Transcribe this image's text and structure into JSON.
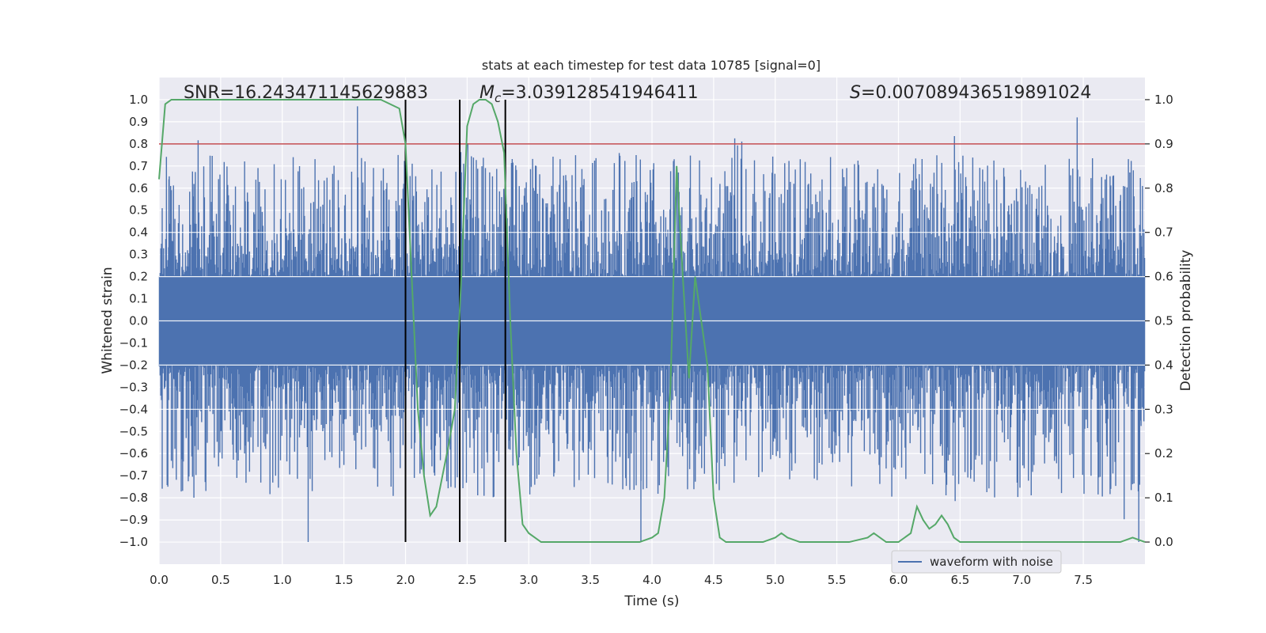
{
  "chart_data": {
    "type": "line",
    "title": "stats at each timestep for test data 10785 [signal=0]",
    "xlabel": "Time (s)",
    "ylabel": "Whitened strain",
    "y2label": "Detection probability",
    "xlim": [
      0,
      8
    ],
    "ylim": [
      -1.1,
      1.1
    ],
    "y2lim": [
      -0.05,
      1.05
    ],
    "xticks": [
      "0.0",
      "0.5",
      "1.0",
      "1.5",
      "2.0",
      "2.5",
      "3.0",
      "3.5",
      "4.0",
      "4.5",
      "5.0",
      "5.5",
      "6.0",
      "6.5",
      "7.0",
      "7.5"
    ],
    "yticks": [
      "1.0",
      "0.9",
      "0.8",
      "0.7",
      "0.6",
      "0.5",
      "0.4",
      "0.3",
      "0.2",
      "0.1",
      "0.0",
      "-0.1",
      "-0.2",
      "-0.3",
      "-0.4",
      "-0.5",
      "-0.6",
      "-0.7",
      "-0.8",
      "-0.9",
      "-1.0"
    ],
    "y2ticks": [
      "1.0",
      "0.9",
      "0.8",
      "0.7",
      "0.6",
      "0.5",
      "0.4",
      "0.3",
      "0.2",
      "0.1",
      "0.0"
    ],
    "grid": true,
    "annotations": {
      "snr": "SNR=16.243471145629883",
      "mc_symbol": "M",
      "mc_sub": "c",
      "mc_value": "=3.039128541946411",
      "s_symbol": "S",
      "s_value": "=0.007089436519891024"
    },
    "legend": {
      "label": "waveform with noise",
      "position": "lower-right"
    },
    "threshold_y2": 0.9,
    "vlines_x": [
      2.0,
      2.44,
      2.81
    ],
    "series": [
      {
        "name": "waveform with noise",
        "color": "#4c72b0",
        "axis": "left",
        "description": "whitened noisy strain sampled across 0-8 s, core band about ±0.2 with spikes up to ±1.0",
        "spikes": [
          {
            "x": 1.21,
            "y": -1.0
          },
          {
            "x": 1.61,
            "y": 0.97
          },
          {
            "x": 3.91,
            "y": -1.0
          },
          {
            "x": 7.45,
            "y": 0.92
          },
          {
            "x": 7.95,
            "y": -1.0
          },
          {
            "x": 0.08,
            "y": 0.64
          },
          {
            "x": 7.98,
            "y": 0.61
          }
        ]
      },
      {
        "name": "detection probability",
        "color": "#55a868",
        "axis": "right",
        "x": [
          0.0,
          0.05,
          0.1,
          0.2,
          0.5,
          1.0,
          1.5,
          1.8,
          1.95,
          2.0,
          2.05,
          2.1,
          2.15,
          2.2,
          2.25,
          2.3,
          2.35,
          2.4,
          2.45,
          2.5,
          2.55,
          2.6,
          2.65,
          2.7,
          2.75,
          2.8,
          2.85,
          2.9,
          2.95,
          3.0,
          3.05,
          3.1,
          3.2,
          3.5,
          3.9,
          4.0,
          4.05,
          4.1,
          4.15,
          4.2,
          4.25,
          4.3,
          4.35,
          4.4,
          4.45,
          4.5,
          4.55,
          4.6,
          4.8,
          4.9,
          5.0,
          5.05,
          5.1,
          5.2,
          5.4,
          5.6,
          5.75,
          5.8,
          5.85,
          5.9,
          6.0,
          6.1,
          6.15,
          6.2,
          6.25,
          6.3,
          6.35,
          6.4,
          6.45,
          6.5,
          6.6,
          7.0,
          7.5,
          7.8,
          7.9,
          8.0
        ],
        "y": [
          0.82,
          0.99,
          1.0,
          1.0,
          1.0,
          1.0,
          1.0,
          1.0,
          0.98,
          0.9,
          0.6,
          0.3,
          0.15,
          0.06,
          0.08,
          0.15,
          0.22,
          0.3,
          0.58,
          0.94,
          0.99,
          1.0,
          1.0,
          0.99,
          0.95,
          0.88,
          0.5,
          0.2,
          0.04,
          0.02,
          0.01,
          0.0,
          0.0,
          0.0,
          0.0,
          0.01,
          0.02,
          0.1,
          0.35,
          0.85,
          0.6,
          0.37,
          0.6,
          0.5,
          0.4,
          0.1,
          0.01,
          0.0,
          0.0,
          0.0,
          0.01,
          0.02,
          0.01,
          0.0,
          0.0,
          0.0,
          0.01,
          0.02,
          0.01,
          0.0,
          0.0,
          0.02,
          0.08,
          0.05,
          0.03,
          0.04,
          0.06,
          0.04,
          0.01,
          0.0,
          0.0,
          0.0,
          0.0,
          0.0,
          0.01,
          0.0
        ]
      }
    ]
  }
}
